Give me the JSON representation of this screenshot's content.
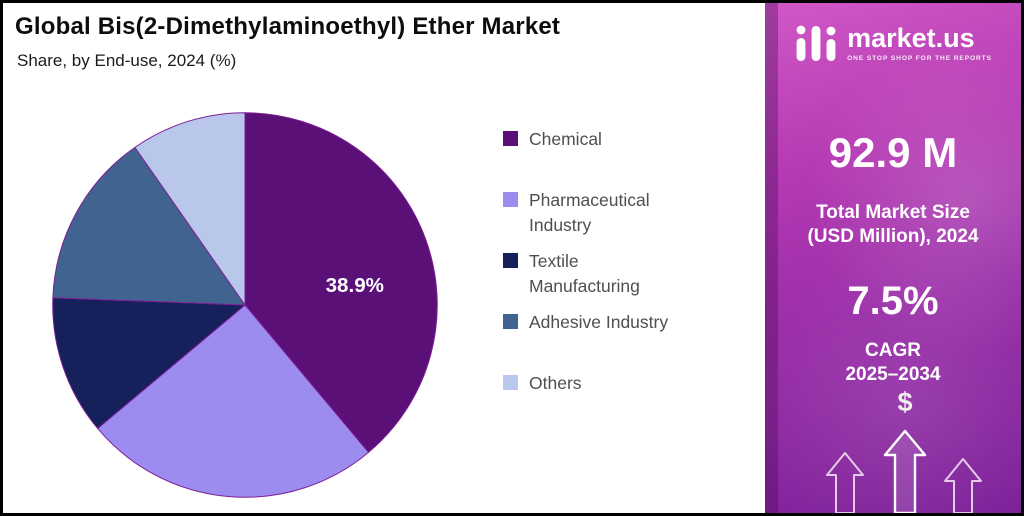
{
  "chart_data": {
    "type": "pie",
    "title": "Global Bis(2-Dimethylaminoethyl) Ether Market",
    "subtitle": "Share, by End-use, 2024 (%)",
    "unit": "%",
    "labels": [
      "Chemical",
      "Pharmaceutical Industry",
      "Textile Manufacturing",
      "Adhesive Industry",
      "Others"
    ],
    "values": [
      38.9,
      25.0,
      11.7,
      14.7,
      9.7
    ],
    "colors": [
      "#5b1078",
      "#9d8cf0",
      "#16205a",
      "#41638f",
      "#b9c8ea"
    ],
    "start_angle_deg": 0,
    "direction": "clockwise",
    "legend_position": "right",
    "data_label": {
      "series": "Chemical",
      "text": "38.9%"
    },
    "slice_stroke": "#7e1f96"
  },
  "sidebar": {
    "brand": {
      "name": "market.us",
      "tagline": "ONE STOP SHOP FOR THE REPORTS"
    },
    "market_size_value": "92.9 M",
    "market_size_label_line1": "Total Market Size",
    "market_size_label_line2": "(USD Million), 2024",
    "cagr_value": "7.5%",
    "cagr_label_line1": "CAGR",
    "cagr_label_line2": "2025–2034",
    "dollar_icon": "$",
    "colors": {
      "panel_top": "#d058c6",
      "panel_bottom": "#7c2199",
      "text": "#ffffff"
    }
  }
}
